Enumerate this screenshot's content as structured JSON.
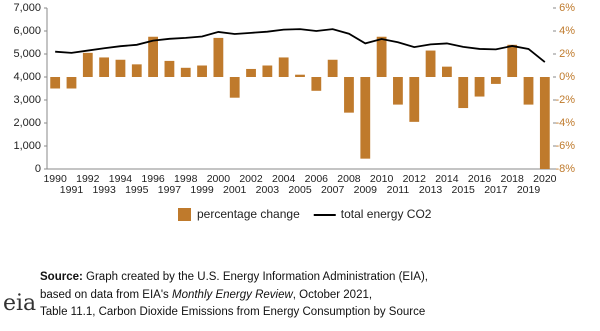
{
  "chart_data": {
    "type": "combo",
    "categories": [
      "1990",
      "1991",
      "1992",
      "1993",
      "1994",
      "1995",
      "1996",
      "1997",
      "1998",
      "1999",
      "2000",
      "2001",
      "2002",
      "2003",
      "2004",
      "2005",
      "2006",
      "2007",
      "2008",
      "2009",
      "2010",
      "2011",
      "2012",
      "2013",
      "2014",
      "2015",
      "2016",
      "2017",
      "2018",
      "2019",
      "2020"
    ],
    "series": [
      {
        "name": "percentage change",
        "type": "bar",
        "axis": "y2",
        "color": "#bf7a2c",
        "values": [
          -1.0,
          -1.0,
          2.1,
          1.7,
          1.5,
          1.1,
          3.5,
          1.4,
          0.8,
          1.0,
          3.4,
          -1.8,
          0.7,
          1.0,
          1.7,
          0.2,
          -1.2,
          1.5,
          -3.1,
          -7.1,
          3.5,
          -2.4,
          -3.9,
          2.3,
          0.9,
          -2.7,
          -1.7,
          -0.6,
          2.8,
          -2.4,
          -8.0
        ]
      },
      {
        "name": "total energy CO2",
        "type": "line",
        "axis": "y",
        "color": "#000000",
        "values": [
          5100,
          5050,
          5150,
          5250,
          5340,
          5400,
          5580,
          5660,
          5700,
          5760,
          5960,
          5870,
          5920,
          5970,
          6060,
          6080,
          6000,
          6080,
          5880,
          5460,
          5650,
          5510,
          5300,
          5420,
          5460,
          5310,
          5220,
          5200,
          5350,
          5220,
          4650
        ]
      }
    ],
    "ylim": [
      0,
      7000
    ],
    "yticks": [
      0,
      {
        "value": 1000,
        "label": "1,000"
      },
      {
        "value": 2000,
        "label": "2,000"
      },
      {
        "value": 3000,
        "label": "3,000"
      },
      {
        "value": 4000,
        "label": "4,000"
      },
      {
        "value": 5000,
        "label": "5,000"
      },
      {
        "value": 6000,
        "label": "6,000"
      },
      {
        "value": 7000,
        "label": "7,000"
      }
    ],
    "y2lim": [
      -8,
      6
    ],
    "y2ticks": [
      {
        "value": -8,
        "label": "-8%"
      },
      {
        "value": -6,
        "label": "-6%"
      },
      {
        "value": -4,
        "label": "-4%"
      },
      {
        "value": -2,
        "label": "-2%"
      },
      {
        "value": 0,
        "label": "0%"
      },
      {
        "value": 2,
        "label": "2%"
      },
      {
        "value": 4,
        "label": "4%"
      },
      {
        "value": 6,
        "label": "6%"
      }
    ],
    "y2_color": "#bf7a2c",
    "legend": "bottom",
    "source": {
      "label": "Source:",
      "text1": "Graph created by the U.S. Energy Information Administration (EIA),",
      "text2a": "based on data from EIA's",
      "text2b": "Monthly Energy Review",
      "text2c": ", October 2021,",
      "text3": "Table 11.1, Carbon Dioxide Emissions from Energy Consumption by Source"
    },
    "logo": "eia"
  }
}
